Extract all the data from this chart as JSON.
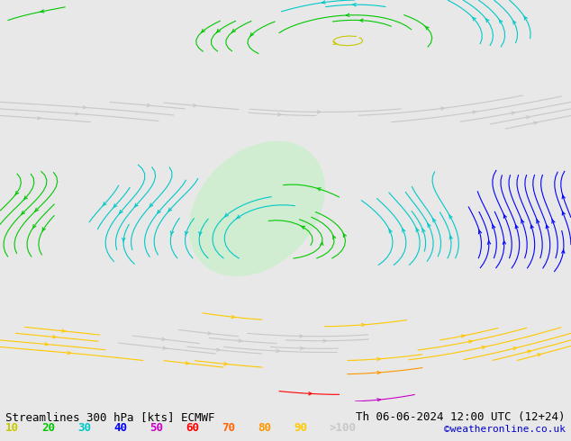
{
  "title_left": "Streamlines 300 hPa [kts] ECMWF",
  "title_right": "Th 06-06-2024 12:00 UTC (12+24)",
  "credit": "©weatheronline.co.uk",
  "bg_color": "#e8e8e8",
  "legend_values": [
    "10",
    "20",
    "30",
    "40",
    "50",
    "60",
    "70",
    "80",
    "90",
    ">100"
  ],
  "legend_colors": [
    "#c8c800",
    "#00c800",
    "#00c8c8",
    "#0000ff",
    "#c800c8",
    "#ff0000",
    "#ff6400",
    "#ff9600",
    "#ffc800",
    "#c8c8c8"
  ],
  "streamline_colors": {
    "10": "#c8c800",
    "20": "#00c800",
    "30": "#00c8c8",
    "40": "#0000ff",
    "50": "#c800c8",
    "60": "#ff0000",
    "70": "#ff6400",
    "80": "#ff9600",
    "90": "#ffc800",
    "100": "#c8c8c8"
  },
  "map_bg": "#f0f0f0",
  "figsize": [
    6.34,
    4.9
  ],
  "dpi": 100
}
